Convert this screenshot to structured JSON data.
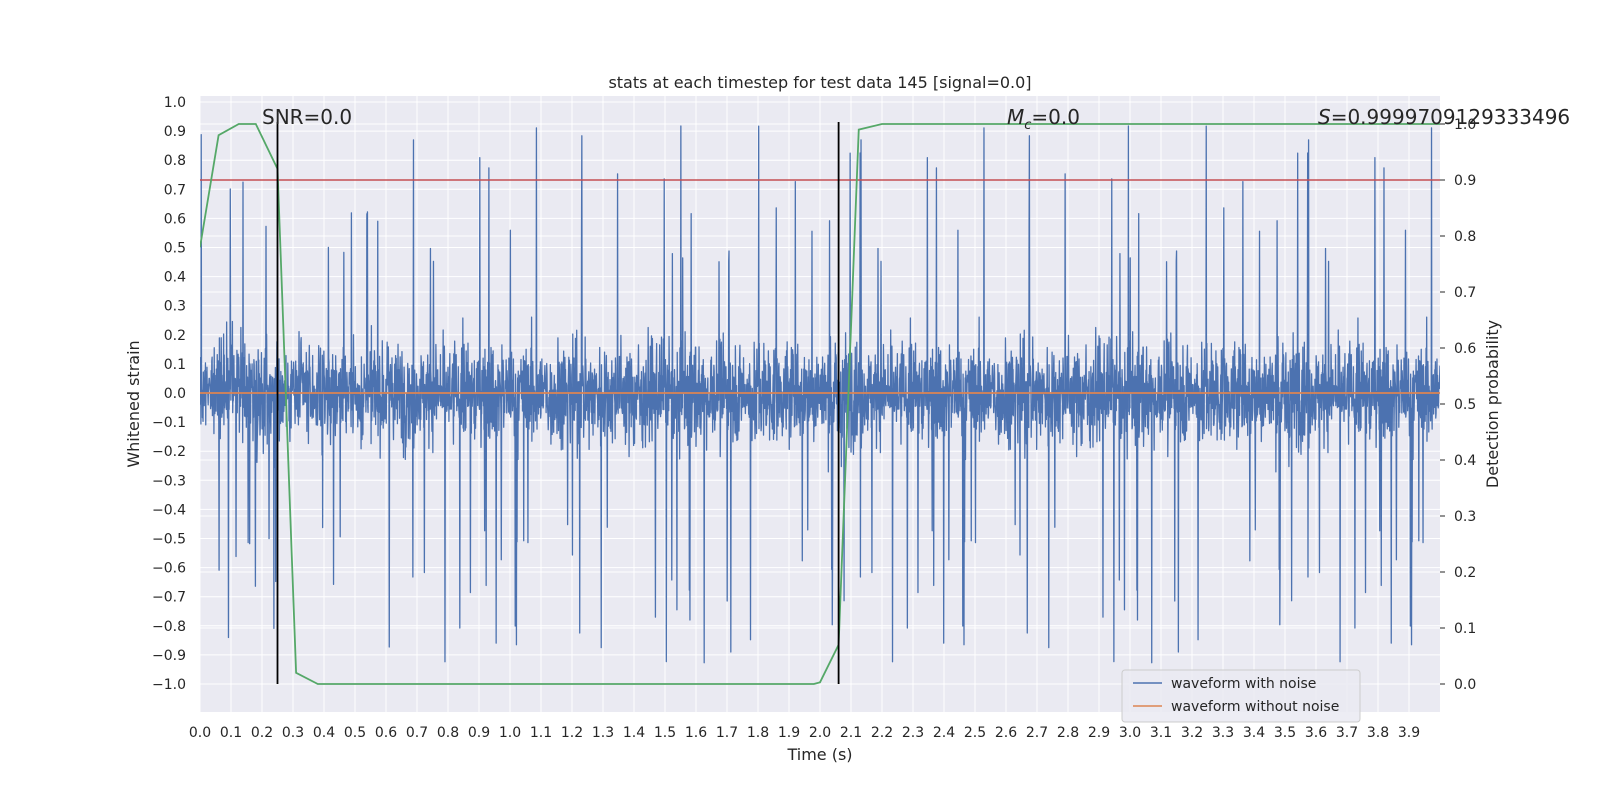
{
  "chart_data": {
    "type": "line",
    "title": "stats at each timestep for test data 145 [signal=0.0]",
    "xlabel": "Time (s)",
    "ylabel": "Whitened strain",
    "ylabel_right": "Detection probability",
    "xlim": [
      0.0,
      4.0
    ],
    "ylim": [
      -1.08,
      1.0
    ],
    "ylim_right": [
      -0.05,
      1.05
    ],
    "x_ticks": [
      "0.0",
      "0.1",
      "0.2",
      "0.3",
      "0.4",
      "0.5",
      "0.6",
      "0.7",
      "0.8",
      "0.9",
      "1.0",
      "1.1",
      "1.2",
      "1.3",
      "1.4",
      "1.5",
      "1.6",
      "1.7",
      "1.8",
      "1.9",
      "2.0",
      "2.1",
      "2.2",
      "2.3",
      "2.4",
      "2.5",
      "2.6",
      "2.7",
      "2.8",
      "2.9",
      "3.0",
      "3.1",
      "3.2",
      "3.3",
      "3.4",
      "3.5",
      "3.6",
      "3.7",
      "3.8",
      "3.9"
    ],
    "y_ticks": [
      "1.0",
      "0.9",
      "0.8",
      "0.7",
      "0.6",
      "0.5",
      "0.4",
      "0.3",
      "0.2",
      "0.1",
      "0.0",
      "−0.1",
      "−0.2",
      "−0.3",
      "−0.4",
      "−0.5",
      "−0.6",
      "−0.7",
      "−0.8",
      "−0.9",
      "−1.0"
    ],
    "y_ticks_right": [
      "1.0",
      "0.9",
      "0.8",
      "0.7",
      "0.6",
      "0.5",
      "0.4",
      "0.3",
      "0.2",
      "0.1",
      "0.0"
    ],
    "annotations": {
      "snr": "SNR=0.0",
      "mc": "=0.0",
      "mc_symbol": "M",
      "mc_subscript": "c",
      "s": "=0.9999709129333496",
      "s_symbol": "S"
    },
    "legend": {
      "position": "lower-right",
      "entries": [
        {
          "label": "waveform with noise",
          "color": "#4c72b0"
        },
        {
          "label": "waveform without noise",
          "color": "#dd8452"
        }
      ]
    },
    "series": [
      {
        "name": "waveform with noise",
        "axis": "left",
        "color": "#4c72b0",
        "noise_amplitude": 0.22,
        "peak_min": -1.0,
        "peak_max": 0.97,
        "seed": 145
      },
      {
        "name": "waveform without noise",
        "axis": "left",
        "color": "#dd8452",
        "x": [
          0.0,
          4.0
        ],
        "y": [
          0.0,
          0.0
        ]
      },
      {
        "name": "detection probability",
        "axis": "right",
        "color": "#55a868",
        "x": [
          0.0,
          0.06,
          0.125,
          0.18,
          0.25,
          0.31,
          0.38,
          1.5,
          1.98,
          2.0,
          2.06,
          2.125,
          2.2,
          4.0
        ],
        "y": [
          0.78,
          0.98,
          1.0,
          1.0,
          0.92,
          0.02,
          0.0,
          0.0,
          0.0,
          0.003,
          0.07,
          0.99,
          1.0,
          1.0
        ]
      },
      {
        "name": "threshold",
        "axis": "right",
        "color": "#c44e52",
        "x": [
          0.0,
          4.0
        ],
        "y": [
          0.9,
          0.9
        ]
      }
    ],
    "vlines": [
      {
        "x": 0.25,
        "color": "#000000"
      },
      {
        "x": 2.06,
        "color": "#000000"
      }
    ],
    "grid": true,
    "colors": {
      "background": "#eaeaf2",
      "grid": "#ffffff"
    }
  }
}
